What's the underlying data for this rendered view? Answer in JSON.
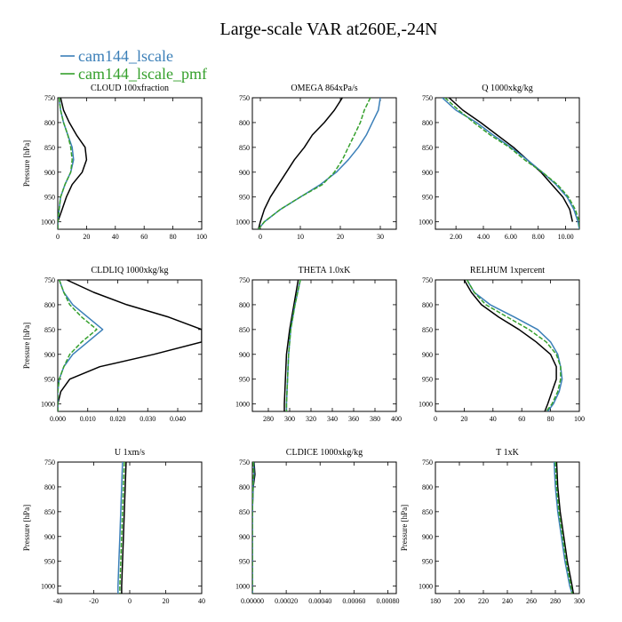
{
  "figure": {
    "title": "Large-scale VAR at260E,-24N",
    "legend": [
      {
        "name": "cam144_lscale",
        "color": "#3b7fb8"
      },
      {
        "name": "cam144_lscale_pmf",
        "color": "#35a02c",
        "dashed": true
      }
    ],
    "obs_color": "#000000"
  },
  "chart_data": [
    {
      "type": "line",
      "title": "CLOUD  100xfraction",
      "ylabel": "Pressure [hPa]",
      "ylim": [
        1015,
        750
      ],
      "xlim": [
        0,
        100
      ],
      "xticks": [
        0,
        20,
        40,
        60,
        80,
        100
      ],
      "xtick_labels": [
        "0",
        "20",
        "40",
        "60",
        "80",
        "100"
      ],
      "yticks": [
        750,
        800,
        850,
        900,
        950,
        1000
      ],
      "series": [
        {
          "p": [
            750,
            775,
            800,
            825,
            850,
            875,
            900,
            925,
            950,
            975,
            1000,
            1015
          ],
          "x": [
            2,
            4,
            8,
            13,
            19,
            20,
            17,
            10,
            6,
            3,
            0,
            0
          ]
        },
        {
          "p": [
            750,
            775,
            800,
            825,
            850,
            875,
            900,
            925,
            950,
            975,
            1000,
            1015
          ],
          "x": [
            1,
            2,
            4,
            7,
            10,
            11,
            9,
            5,
            2,
            1,
            0,
            0
          ]
        },
        {
          "p": [
            750,
            775,
            800,
            825,
            850,
            875,
            900,
            925,
            950,
            975,
            1000,
            1015
          ],
          "x": [
            1,
            2,
            4,
            7,
            9,
            10,
            9,
            5,
            2,
            1,
            0,
            0
          ]
        }
      ]
    },
    {
      "type": "line",
      "title": "OMEGA  864xPa/s",
      "ylabel": "",
      "ylim": [
        1015,
        750
      ],
      "xlim": [
        -2,
        34
      ],
      "xticks": [
        0,
        10,
        20,
        30
      ],
      "xtick_labels": [
        "0",
        "10",
        "20",
        "30"
      ],
      "yticks": [
        750,
        800,
        850,
        900,
        950,
        1000
      ],
      "series": [
        {
          "p": [
            750,
            775,
            800,
            825,
            850,
            875,
            900,
            925,
            950,
            975,
            1000,
            1015
          ],
          "x": [
            20.5,
            18.5,
            16,
            13,
            11,
            8.5,
            6.5,
            4.5,
            2.5,
            1,
            0,
            -0.5
          ]
        },
        {
          "p": [
            750,
            775,
            800,
            825,
            850,
            875,
            900,
            925,
            950,
            975,
            1000,
            1015
          ],
          "x": [
            30,
            29.5,
            28,
            26.5,
            24.5,
            22,
            19,
            15,
            10,
            5,
            1,
            -0.5
          ]
        },
        {
          "p": [
            750,
            775,
            800,
            825,
            850,
            875,
            900,
            925,
            950,
            975,
            1000,
            1015
          ],
          "x": [
            27.5,
            26,
            25,
            23.5,
            22,
            20.5,
            18.5,
            15.5,
            10,
            5,
            1,
            -0.5
          ]
        }
      ]
    },
    {
      "type": "line",
      "title": "Q  1000xkg/kg",
      "ylabel": "",
      "ylim": [
        1015,
        750
      ],
      "xlim": [
        0.5,
        11
      ],
      "xticks": [
        2,
        4,
        6,
        8,
        10
      ],
      "xtick_labels": [
        "2.00",
        "4.00",
        "6.00",
        "8.00",
        "10.00"
      ],
      "yticks": [
        750,
        800,
        850,
        900,
        950,
        1000
      ],
      "series": [
        {
          "p": [
            750,
            775,
            800,
            825,
            850,
            875,
            900,
            925,
            950,
            975,
            1000
          ],
          "x": [
            1.5,
            2.5,
            3.8,
            5.0,
            6.2,
            7.2,
            8.2,
            9.0,
            9.8,
            10.3,
            10.5
          ]
        },
        {
          "p": [
            750,
            775,
            800,
            825,
            850,
            875,
            900,
            925,
            950,
            975,
            1000,
            1015
          ],
          "x": [
            1.0,
            2.0,
            3.5,
            4.7,
            6.0,
            7.2,
            8.3,
            9.3,
            10.1,
            10.6,
            10.9,
            11.0
          ]
        },
        {
          "p": [
            750,
            775,
            800,
            825,
            850,
            875,
            900,
            925,
            950,
            975,
            1000,
            1015
          ],
          "x": [
            1.2,
            2.2,
            3.3,
            4.5,
            5.9,
            7.0,
            8.3,
            9.4,
            10.2,
            10.7,
            11.0,
            11.0
          ]
        }
      ]
    },
    {
      "type": "line",
      "title": "CLDLIQ  1000xkg/kg",
      "ylabel": "Pressure [hPa]",
      "ylim": [
        1015,
        750
      ],
      "xlim": [
        0,
        0.048
      ],
      "xticks": [
        0,
        0.01,
        0.02,
        0.03,
        0.04
      ],
      "xtick_labels": [
        "0.000",
        "0.010",
        "0.020",
        "0.030",
        "0.040"
      ],
      "yticks": [
        750,
        800,
        850,
        900,
        950,
        1000
      ],
      "series": [
        {
          "p": [
            750,
            775,
            800,
            825,
            850,
            875,
            900,
            925,
            950,
            975,
            1000,
            1015
          ],
          "x": [
            0.003,
            0.012,
            0.023,
            0.037,
            0.048,
            0.048,
            0.032,
            0.014,
            0.004,
            0.001,
            0,
            0
          ]
        },
        {
          "p": [
            750,
            775,
            800,
            825,
            850,
            875,
            900,
            925,
            950,
            975,
            1000,
            1015
          ],
          "x": [
            0.0005,
            0.002,
            0.005,
            0.01,
            0.015,
            0.01,
            0.005,
            0.002,
            0.0005,
            0,
            0,
            0
          ]
        },
        {
          "p": [
            750,
            775,
            800,
            825,
            850,
            875,
            900,
            925,
            950,
            975,
            1000,
            1015
          ],
          "x": [
            0.0005,
            0.002,
            0.004,
            0.008,
            0.013,
            0.008,
            0.004,
            0.002,
            0.0005,
            0,
            0,
            0
          ]
        }
      ]
    },
    {
      "type": "line",
      "title": "THETA  1.0xK",
      "ylabel": "",
      "ylim": [
        1015,
        750
      ],
      "xlim": [
        265,
        400
      ],
      "xticks": [
        280,
        300,
        320,
        340,
        360,
        380,
        400
      ],
      "xtick_labels": [
        "280",
        "300",
        "320",
        "340",
        "360",
        "380",
        "400"
      ],
      "yticks": [
        750,
        800,
        850,
        900,
        950,
        1000
      ],
      "series": [
        {
          "p": [
            750,
            800,
            850,
            900,
            950,
            1000,
            1015
          ],
          "x": [
            308,
            304,
            300,
            297,
            296,
            295,
            295
          ]
        },
        {
          "p": [
            750,
            800,
            850,
            900,
            950,
            1000,
            1015
          ],
          "x": [
            310,
            305,
            301,
            299,
            298,
            297,
            297
          ]
        },
        {
          "p": [
            750,
            800,
            850,
            900,
            950,
            1000,
            1015
          ],
          "x": [
            310,
            305,
            301,
            299,
            298,
            297,
            297
          ]
        }
      ]
    },
    {
      "type": "line",
      "title": "RELHUM  1xpercent",
      "ylabel": "",
      "ylim": [
        1015,
        750
      ],
      "xlim": [
        0,
        100
      ],
      "xticks": [
        0,
        20,
        40,
        60,
        80,
        100
      ],
      "xtick_labels": [
        "0",
        "20",
        "40",
        "60",
        "80",
        "100"
      ],
      "yticks": [
        750,
        800,
        850,
        900,
        950,
        1000
      ],
      "series": [
        {
          "p": [
            750,
            775,
            800,
            825,
            850,
            875,
            900,
            925,
            950,
            975,
            1000,
            1015
          ],
          "x": [
            20,
            25,
            32,
            44,
            58,
            70,
            80,
            84,
            84,
            81,
            78,
            76
          ]
        },
        {
          "p": [
            750,
            775,
            800,
            825,
            850,
            875,
            900,
            925,
            950,
            975,
            1000,
            1015
          ],
          "x": [
            22,
            27,
            38,
            55,
            71,
            80,
            85,
            87,
            88,
            86,
            82,
            78
          ]
        },
        {
          "p": [
            750,
            775,
            800,
            825,
            850,
            875,
            900,
            925,
            950,
            975,
            1000,
            1015
          ],
          "x": [
            22,
            27,
            35,
            50,
            65,
            77,
            84,
            87,
            87,
            85,
            81,
            77
          ]
        }
      ]
    },
    {
      "type": "line",
      "title": "U  1xm/s",
      "ylabel": "Pressure [hPa]",
      "ylim": [
        1015,
        750
      ],
      "xlim": [
        -40,
        40
      ],
      "xticks": [
        -40,
        -20,
        0,
        20,
        40
      ],
      "xtick_labels": [
        "-40",
        "-20",
        "0",
        "20",
        "40"
      ],
      "yticks": [
        750,
        800,
        850,
        900,
        950,
        1000
      ],
      "series": [
        {
          "p": [
            750,
            800,
            850,
            900,
            950,
            1000,
            1015
          ],
          "x": [
            -2,
            -2.5,
            -3,
            -3.5,
            -4,
            -4.5,
            -4.5
          ]
        },
        {
          "p": [
            750,
            800,
            850,
            900,
            950,
            1000,
            1015
          ],
          "x": [
            -4,
            -4.5,
            -5,
            -5.5,
            -6,
            -6.5,
            -6.5
          ]
        },
        {
          "p": [
            750,
            800,
            850,
            900,
            950,
            1000,
            1015
          ],
          "x": [
            -3,
            -3.5,
            -4,
            -4.5,
            -5,
            -5.5,
            -5.5
          ]
        }
      ]
    },
    {
      "type": "line",
      "title": "CLDICE  1000xkg/kg",
      "ylabel": "",
      "ylim": [
        1015,
        750
      ],
      "xlim": [
        0,
        0.00085
      ],
      "xticks": [
        0,
        0.0002,
        0.0004,
        0.0006,
        0.0008
      ],
      "xtick_labels": [
        "0.00000",
        "0.00020",
        "0.00040",
        "0.00060",
        "0.00080"
      ],
      "yticks": [
        750,
        800,
        850,
        900,
        950,
        1000
      ],
      "series": [
        {
          "p": [
            750,
            775,
            800,
            850,
            900,
            1015
          ],
          "x": [
            1e-05,
            1.5e-05,
            5e-06,
            0,
            0,
            0
          ]
        },
        {
          "p": [
            750,
            775,
            800,
            850,
            900,
            1015
          ],
          "x": [
            8e-06,
            1e-05,
            4e-06,
            0,
            0,
            0
          ]
        },
        {
          "p": [
            750,
            775,
            800,
            850,
            900,
            1015
          ],
          "x": [
            6e-06,
            8e-06,
            3e-06,
            0,
            0,
            0
          ]
        }
      ]
    },
    {
      "type": "line",
      "title": "T  1xK",
      "ylabel": "Pressure [hPa]",
      "ylim": [
        1015,
        750
      ],
      "xlim": [
        180,
        300
      ],
      "xticks": [
        180,
        200,
        220,
        240,
        260,
        280,
        300
      ],
      "xtick_labels": [
        "180",
        "200",
        "220",
        "240",
        "260",
        "280",
        "300"
      ],
      "yticks": [
        750,
        800,
        850,
        900,
        950,
        1000
      ],
      "series": [
        {
          "p": [
            750,
            800,
            850,
            900,
            950,
            1000,
            1015
          ],
          "x": [
            281,
            282,
            284,
            287,
            290,
            294,
            295
          ]
        },
        {
          "p": [
            750,
            800,
            850,
            900,
            950,
            1000,
            1015
          ],
          "x": [
            279,
            280,
            282,
            285,
            288,
            292,
            294
          ]
        },
        {
          "p": [
            750,
            800,
            850,
            900,
            950,
            1000,
            1015
          ],
          "x": [
            280,
            281,
            283,
            286,
            289,
            293,
            294
          ]
        }
      ]
    }
  ]
}
